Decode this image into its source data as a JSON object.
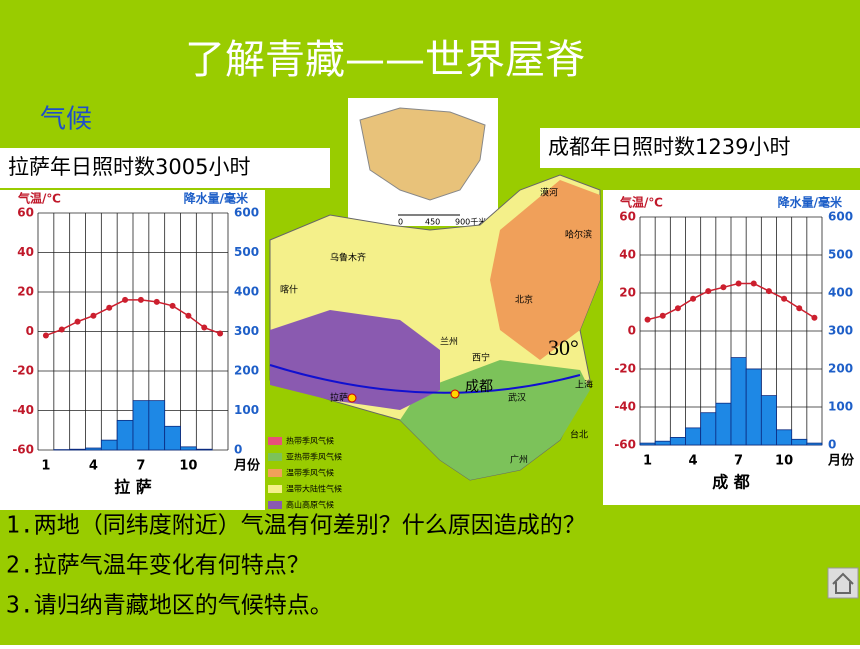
{
  "slide": {
    "title": "了解青藏——世界屋脊",
    "section": "气候",
    "left_note": "拉萨年日照时数3005小时",
    "right_note": "成都年日照时数1239小时",
    "questions": [
      "1.两地（同纬度附近）气温有何差别？什么原因造成的？",
      "2.拉萨气温年变化有何特点？",
      "3.请归纳青藏地区的气候特点。"
    ],
    "map": {
      "places": [
        "漠河",
        "哈尔滨",
        "乌鲁木齐",
        "喀什",
        "北京",
        "兰州",
        "西宁",
        "拉萨",
        "成都",
        "武汉",
        "上海",
        "台北",
        "广州"
      ],
      "latitude": "30°",
      "legend": [
        "热带季风气候",
        "亚热带季风气候",
        "温带季风气候",
        "温带大陆性气候",
        "高山高原气候"
      ],
      "scale": [
        "0",
        "450",
        "900千米"
      ]
    }
  },
  "chart_data": [
    {
      "type": "climate",
      "title": "拉 萨",
      "y_label": "气温/℃",
      "y2_label": "降水量/毫米",
      "x_label": "月份",
      "categories": [
        "1",
        null,
        null,
        "4",
        null,
        null,
        "7",
        null,
        null,
        "10",
        null,
        null
      ],
      "series": [
        {
          "name": "气温",
          "color": "#cc1f2e",
          "values": [
            -2,
            1,
            5,
            8,
            12,
            16,
            16,
            15,
            13,
            8,
            2,
            -1
          ]
        },
        {
          "name": "降水量",
          "color": "#1e88e5",
          "axis": "y2",
          "values": [
            0,
            1,
            2,
            5,
            25,
            75,
            125,
            125,
            60,
            8,
            2,
            0
          ]
        }
      ],
      "ylim": [
        -60,
        60
      ],
      "yticks": [
        -60,
        -40,
        -20,
        0,
        20,
        40,
        60
      ],
      "y2lim": [
        0,
        600
      ],
      "y2ticks": [
        0,
        100,
        200,
        300,
        400,
        500,
        600
      ],
      "grid": true
    },
    {
      "type": "climate",
      "title": "成 都",
      "y_label": "气温/℃",
      "y2_label": "降水量/毫米",
      "x_label": "月份",
      "categories": [
        "1",
        null,
        null,
        "4",
        null,
        null,
        "7",
        null,
        null,
        "10",
        null,
        null
      ],
      "series": [
        {
          "name": "气温",
          "color": "#cc1f2e",
          "values": [
            6,
            8,
            12,
            17,
            21,
            23,
            25,
            25,
            21,
            17,
            12,
            7
          ]
        },
        {
          "name": "降水量",
          "color": "#1e88e5",
          "axis": "y2",
          "values": [
            5,
            10,
            20,
            45,
            85,
            110,
            230,
            200,
            130,
            40,
            15,
            5
          ]
        }
      ],
      "ylim": [
        -60,
        60
      ],
      "yticks": [
        -60,
        -40,
        -20,
        0,
        20,
        40,
        60
      ],
      "y2lim": [
        0,
        600
      ],
      "y2ticks": [
        0,
        100,
        200,
        300,
        400,
        500,
        600
      ],
      "grid": true
    }
  ]
}
